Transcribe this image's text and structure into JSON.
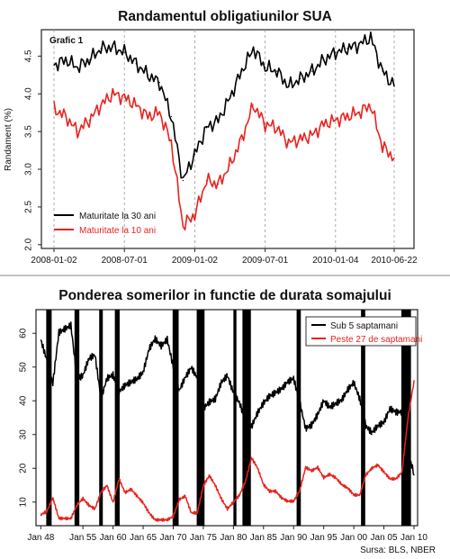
{
  "chart_data": [
    {
      "type": "line",
      "title": "Randamentul obligatiunilor SUA",
      "annotation": "Grafic 1",
      "ylabel": "Randament (%)",
      "ylim": [
        1.95,
        4.85
      ],
      "yticks": [
        "2.0",
        "2.5",
        "3.0",
        "3.5",
        "4.0",
        "4.5"
      ],
      "xticks": [
        "2008-01-02",
        "2008-07-01",
        "2009-01-02",
        "2009-07-01",
        "2010-01-04",
        "2010-06-22"
      ],
      "legend_position": "bottom-left",
      "grid": true,
      "colors": {
        "series_0": "#000000",
        "series_1": "#e8231f"
      },
      "x": [
        "2008-01",
        "2008-02",
        "2008-03",
        "2008-04",
        "2008-05",
        "2008-06",
        "2008-07",
        "2008-08",
        "2008-09",
        "2008-10",
        "2008-11",
        "2008-12",
        "2009-01",
        "2009-02",
        "2009-03",
        "2009-04",
        "2009-05",
        "2009-06",
        "2009-07",
        "2009-08",
        "2009-09",
        "2009-10",
        "2009-11",
        "2009-12",
        "2010-01",
        "2010-02",
        "2010-03",
        "2010-04",
        "2010-05",
        "2010-06"
      ],
      "series": [
        {
          "name": "Maturitate la 30 ani",
          "values": [
            4.38,
            4.45,
            4.35,
            4.45,
            4.6,
            4.62,
            4.55,
            4.4,
            4.25,
            4.15,
            3.7,
            2.85,
            3.2,
            3.55,
            3.65,
            3.95,
            4.3,
            4.6,
            4.35,
            4.3,
            4.1,
            4.2,
            4.3,
            4.45,
            4.55,
            4.6,
            4.65,
            4.75,
            4.3,
            4.1
          ]
        },
        {
          "name": "Maturitate la 10 ani",
          "values": [
            3.8,
            3.7,
            3.5,
            3.65,
            3.85,
            4.0,
            3.95,
            3.85,
            3.7,
            3.75,
            3.35,
            2.25,
            2.4,
            2.85,
            2.8,
            3.05,
            3.4,
            3.85,
            3.6,
            3.55,
            3.35,
            3.4,
            3.45,
            3.6,
            3.65,
            3.7,
            3.75,
            3.85,
            3.3,
            3.15
          ]
        }
      ]
    },
    {
      "type": "line",
      "title": "Ponderea somerilor in functie de durata somajului",
      "source": "Sursa: BLS, NBER",
      "ylim": [
        3,
        67
      ],
      "yticks": [
        "10",
        "20",
        "30",
        "40",
        "50",
        "60"
      ],
      "xticks": [
        "Jan 48",
        "Jan 55",
        "Jan 60",
        "Jan 65",
        "Jan 70",
        "Jan 75",
        "Jan 80",
        "Jan 85",
        "Jan 90",
        "Jan 95",
        "Jan 00",
        "Jan 05",
        "Jan 10"
      ],
      "legend_position": "top-right",
      "grid": false,
      "colors": {
        "series_0": "#000000",
        "series_1": "#e8231f",
        "recession": "#000000"
      },
      "recessions": [
        [
          1948.9,
          1949.8
        ],
        [
          1953.6,
          1954.4
        ],
        [
          1957.7,
          1958.3
        ],
        [
          1960.3,
          1961.1
        ],
        [
          1969.9,
          1970.9
        ],
        [
          1973.9,
          1975.2
        ],
        [
          1980.0,
          1980.5
        ],
        [
          1981.5,
          1982.9
        ],
        [
          1990.5,
          1991.2
        ],
        [
          2001.2,
          2001.9
        ],
        [
          2007.9,
          2009.5
        ]
      ],
      "x": [
        1948,
        1949,
        1950,
        1951,
        1952,
        1953,
        1954,
        1955,
        1956,
        1957,
        1958,
        1959,
        1960,
        1961,
        1962,
        1963,
        1964,
        1965,
        1966,
        1967,
        1968,
        1969,
        1970,
        1971,
        1972,
        1973,
        1974,
        1975,
        1976,
        1977,
        1978,
        1979,
        1980,
        1981,
        1982,
        1983,
        1984,
        1985,
        1986,
        1987,
        1988,
        1989,
        1990,
        1991,
        1992,
        1993,
        1994,
        1995,
        1996,
        1997,
        1998,
        1999,
        2000,
        2001,
        2002,
        2003,
        2004,
        2005,
        2006,
        2007,
        2008,
        2009,
        2010
      ],
      "series": [
        {
          "name": "Sub 5 saptamani",
          "values": [
            58,
            52,
            45,
            60,
            61,
            62,
            46,
            47,
            52,
            53,
            40,
            46,
            47,
            42,
            44,
            45,
            46,
            48,
            55,
            58,
            56,
            58,
            50,
            43,
            47,
            50,
            47,
            38,
            40,
            41,
            46,
            48,
            43,
            40,
            35,
            33,
            37,
            40,
            42,
            43,
            44,
            46,
            47,
            40,
            32,
            33,
            36,
            40,
            38,
            39,
            40,
            43,
            45,
            40,
            32,
            30,
            32,
            33,
            37,
            36,
            36,
            24,
            18
          ]
        },
        {
          "name": "Peste 27 de saptamani",
          "values": [
            6,
            7,
            11,
            5,
            5,
            5,
            9,
            11,
            9,
            8,
            13,
            15,
            10,
            17,
            13,
            14,
            12,
            10,
            7,
            5,
            5,
            5,
            6,
            11,
            12,
            7,
            7,
            15,
            18,
            15,
            11,
            8,
            10,
            12,
            16,
            23,
            20,
            15,
            13,
            13,
            11,
            10,
            10,
            13,
            20,
            19,
            20,
            17,
            18,
            17,
            15,
            14,
            12,
            12,
            18,
            20,
            21,
            19,
            17,
            17,
            19,
            35,
            46
          ]
        }
      ]
    }
  ]
}
